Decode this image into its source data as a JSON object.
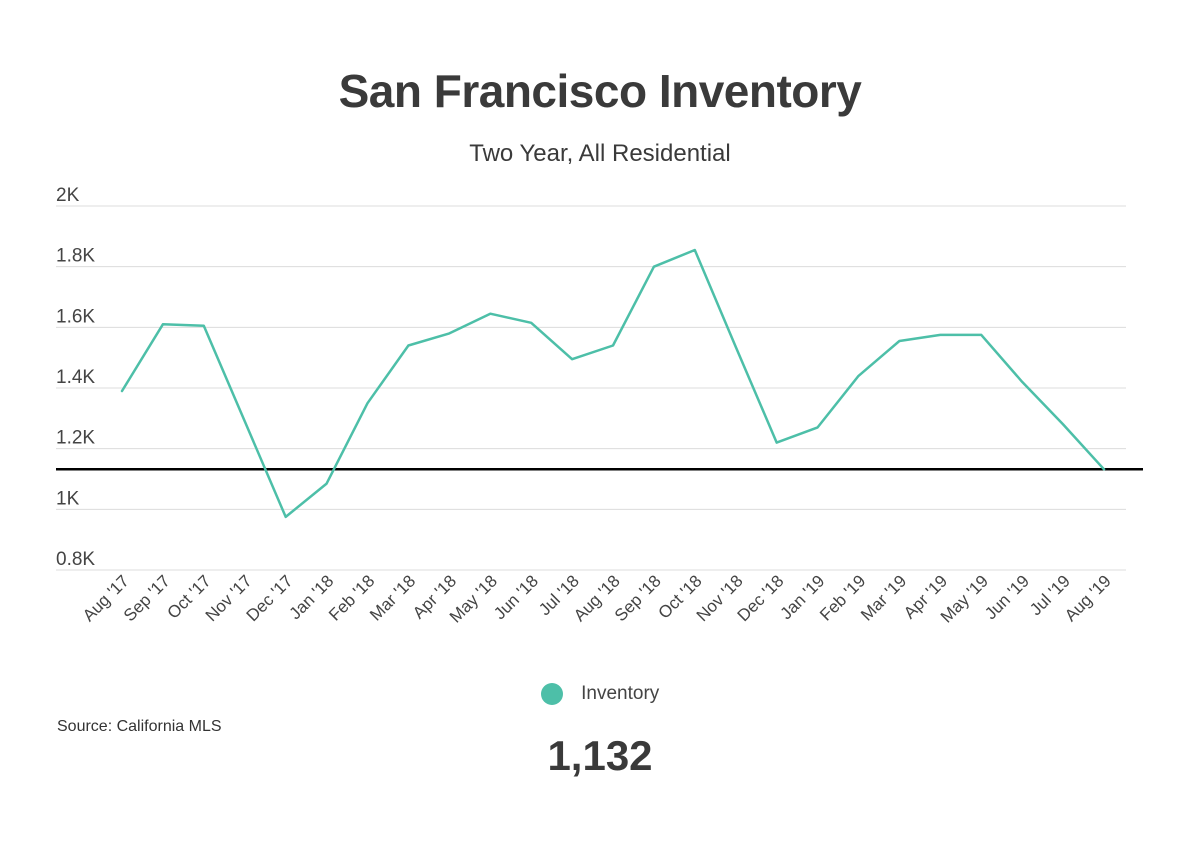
{
  "chart_data": {
    "type": "line",
    "title": "San Francisco Inventory",
    "subtitle": "Two Year, All Residential",
    "categories": [
      "Aug '17",
      "Sep '17",
      "Oct '17",
      "Nov '17",
      "Dec '17",
      "Jan '18",
      "Feb '18",
      "Mar '18",
      "Apr '18",
      "May '18",
      "Jun '18",
      "Jul '18",
      "Aug '18",
      "Sep '18",
      "Oct '18",
      "Nov '18",
      "Dec '18",
      "Jan '19",
      "Feb '19",
      "Mar '19",
      "Apr '19",
      "May '19",
      "Jun '19",
      "Jul '19",
      "Aug '19"
    ],
    "series": [
      {
        "name": "Inventory",
        "color": "#4dbfa8",
        "values": [
          1390,
          1610,
          1605,
          1290,
          975,
          1085,
          1350,
          1540,
          1580,
          1645,
          1615,
          1495,
          1540,
          1800,
          1855,
          1535,
          1220,
          1270,
          1440,
          1555,
          1575,
          1575,
          1420,
          1280,
          1132
        ]
      }
    ],
    "ylim": [
      800,
      2000
    ],
    "yticks": [
      800,
      1000,
      1200,
      1400,
      1600,
      1800,
      2000
    ],
    "ytick_labels": [
      "0.8K",
      "1K",
      "1.2K",
      "1.4K",
      "1.6K",
      "1.8K",
      "2K"
    ],
    "reference_line": {
      "value": 1132,
      "color": "#000000"
    },
    "grid": true,
    "legend_position": "bottom-center"
  },
  "source_text": "Source:  California MLS",
  "current_value_label": "1,132"
}
